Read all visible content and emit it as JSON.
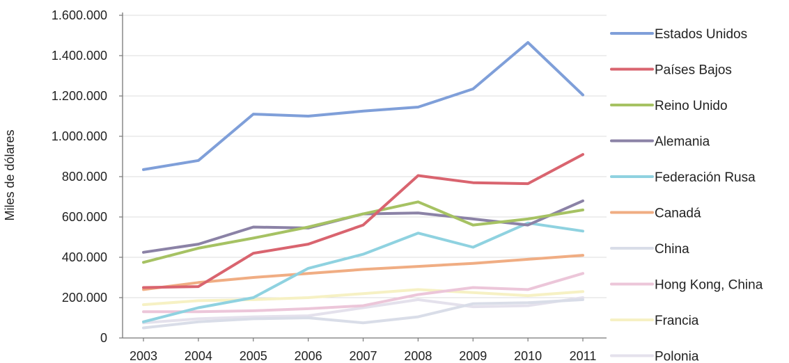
{
  "chart_data": {
    "type": "line",
    "title": "",
    "xlabel": "",
    "ylabel": "Miles de dólares",
    "categories": [
      "2003",
      "2004",
      "2005",
      "2006",
      "2007",
      "2008",
      "2009",
      "2010",
      "2011"
    ],
    "ylim": [
      0,
      1600000
    ],
    "yticks": [
      0,
      200000,
      400000,
      600000,
      800000,
      1000000,
      1200000,
      1400000,
      1600000
    ],
    "ytick_labels": [
      "0",
      "200.000",
      "400.000",
      "600.000",
      "800.000",
      "1.000.000",
      "1.200.000",
      "1.400.000",
      "1.600.000"
    ],
    "grid": "horizontal",
    "legend_position": "right",
    "series": [
      {
        "name": "Estados Unidos",
        "color": "#7f9fd9",
        "values": [
          835000,
          880000,
          1110000,
          1100000,
          1125000,
          1145000,
          1235000,
          1465000,
          1205000
        ]
      },
      {
        "name": "Países Bajos",
        "color": "#d9646f",
        "values": [
          250000,
          255000,
          420000,
          465000,
          560000,
          805000,
          770000,
          765000,
          910000
        ]
      },
      {
        "name": "Reino Unido",
        "color": "#a6c263",
        "values": [
          375000,
          445000,
          495000,
          550000,
          615000,
          675000,
          560000,
          590000,
          635000
        ]
      },
      {
        "name": "Alemania",
        "color": "#8b82a6",
        "values": [
          425000,
          465000,
          550000,
          545000,
          615000,
          620000,
          590000,
          560000,
          680000
        ]
      },
      {
        "name": "Federación Rusa",
        "color": "#8fd2e0",
        "values": [
          80000,
          150000,
          200000,
          345000,
          415000,
          520000,
          450000,
          570000,
          530000
        ]
      },
      {
        "name": "Canadá",
        "color": "#f0ad83",
        "values": [
          240000,
          275000,
          300000,
          320000,
          340000,
          355000,
          370000,
          390000,
          410000
        ]
      },
      {
        "name": "China",
        "color": "#d9dde8",
        "values": [
          50000,
          80000,
          95000,
          100000,
          75000,
          105000,
          170000,
          175000,
          190000
        ]
      },
      {
        "name": "Hong Kong, China",
        "color": "#ecc6d9",
        "values": [
          130000,
          130000,
          135000,
          145000,
          160000,
          215000,
          250000,
          240000,
          320000
        ]
      },
      {
        "name": "Francia",
        "color": "#f6f1c4",
        "values": [
          165000,
          185000,
          190000,
          200000,
          220000,
          240000,
          225000,
          210000,
          230000
        ]
      },
      {
        "name": "Polonia",
        "color": "#e4e1ec",
        "values": [
          75000,
          95000,
          105000,
          110000,
          150000,
          190000,
          155000,
          160000,
          200000
        ]
      }
    ]
  }
}
